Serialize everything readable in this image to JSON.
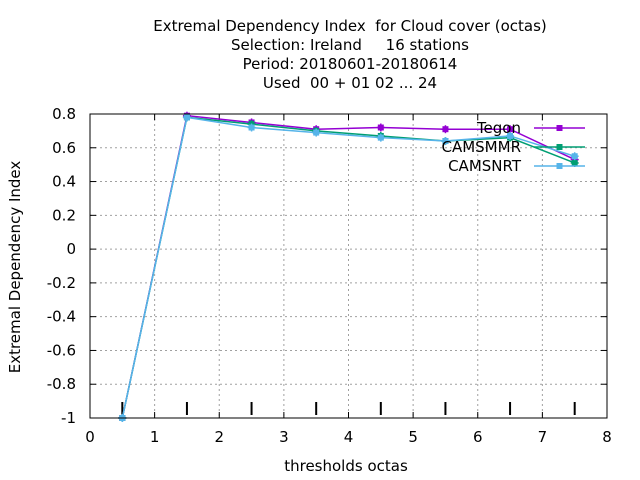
{
  "chart_data": {
    "type": "line",
    "title_lines": [
      "Extremal Dependency Index  for Cloud cover (octas)",
      "Selection: Ireland     16 stations",
      "Period: 20180601-20180614",
      "Used  00 + 01 02 ... 24"
    ],
    "xlabel": "thresholds octas",
    "ylabel": "Extremal Dependency Index",
    "xlim": [
      0,
      8
    ],
    "ylim": [
      -1,
      0.8
    ],
    "xticks": [
      "0",
      "1",
      "2",
      "3",
      "4",
      "5",
      "6",
      "7",
      "8"
    ],
    "yticks": [
      "-1",
      "-0.8",
      "-0.6",
      "-0.4",
      "-0.2",
      "0",
      "0.2",
      "0.4",
      "0.6",
      "0.8"
    ],
    "grid": true,
    "legend_position": "top-right",
    "x": [
      0.5,
      1.5,
      2.5,
      3.5,
      4.5,
      5.5,
      6.5,
      7.5
    ],
    "series": [
      {
        "name": "Tegon",
        "color": "#9400d3",
        "values": [
          -1,
          0.79,
          0.75,
          0.71,
          0.72,
          0.71,
          0.71,
          0.53
        ]
      },
      {
        "name": "CAMSMMR",
        "color": "#009e73",
        "values": [
          -1,
          0.78,
          0.74,
          0.7,
          0.67,
          0.64,
          0.66,
          0.51
        ]
      },
      {
        "name": "CAMSNRT",
        "color": "#56b4e9",
        "values": [
          -1,
          0.78,
          0.72,
          0.69,
          0.66,
          0.64,
          0.67,
          0.55
        ]
      }
    ]
  }
}
